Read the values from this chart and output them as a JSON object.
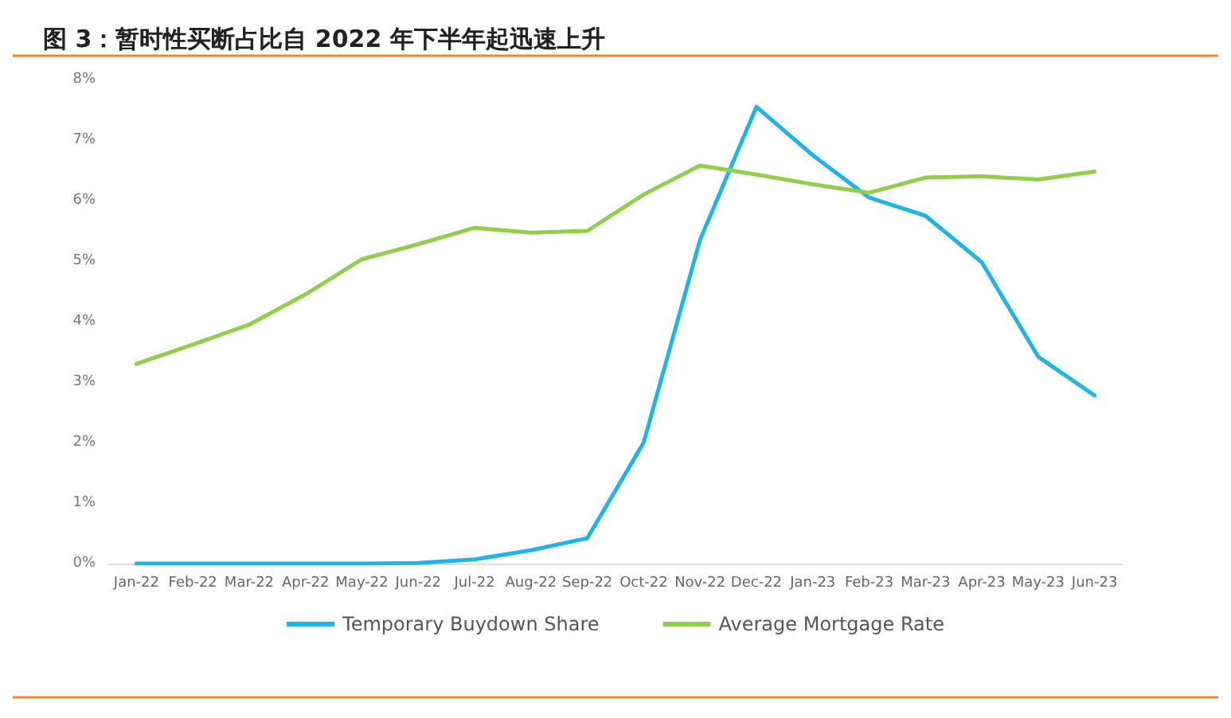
{
  "chart_data": {
    "type": "line",
    "title": "图 3：暂时性买断占比自 2022 年下半年起迅速上升",
    "categories": [
      "Jan-22",
      "Feb-22",
      "Mar-22",
      "Apr-22",
      "May-22",
      "Jun-22",
      "Jul-22",
      "Aug-22",
      "Sep-22",
      "Oct-22",
      "Nov-22",
      "Dec-22",
      "Jan-23",
      "Feb-23",
      "Mar-23",
      "Apr-23",
      "May-23",
      "Jun-23"
    ],
    "series": [
      {
        "name": "Temporary Buydown Share",
        "color": "#1eb4ea",
        "values": [
          0,
          0,
          0,
          0,
          0,
          0.01,
          0.07,
          0.22,
          0.42,
          2.0,
          5.35,
          7.55,
          6.75,
          6.05,
          5.75,
          4.98,
          3.42,
          2.78
        ]
      },
      {
        "name": "Average Mortgage Rate",
        "color": "#8fcf4a",
        "values": [
          3.3,
          3.62,
          3.95,
          4.45,
          5.03,
          5.28,
          5.55,
          5.47,
          5.5,
          6.1,
          6.58,
          6.43,
          6.27,
          6.13,
          6.38,
          6.4,
          6.35,
          6.48
        ]
      }
    ],
    "ylim": [
      0,
      8
    ],
    "yticks": [
      {
        "value": 0,
        "label": "0%"
      },
      {
        "value": 1,
        "label": "1%"
      },
      {
        "value": 2,
        "label": "2%"
      },
      {
        "value": 3,
        "label": "3%"
      },
      {
        "value": 4,
        "label": "4%"
      },
      {
        "value": 5,
        "label": "5%"
      },
      {
        "value": 6,
        "label": "6%"
      },
      {
        "value": 7,
        "label": "7%"
      },
      {
        "value": 8,
        "label": "8%"
      }
    ],
    "grid": false,
    "legend": "bottom",
    "marker": "none",
    "line_style": "solid"
  }
}
